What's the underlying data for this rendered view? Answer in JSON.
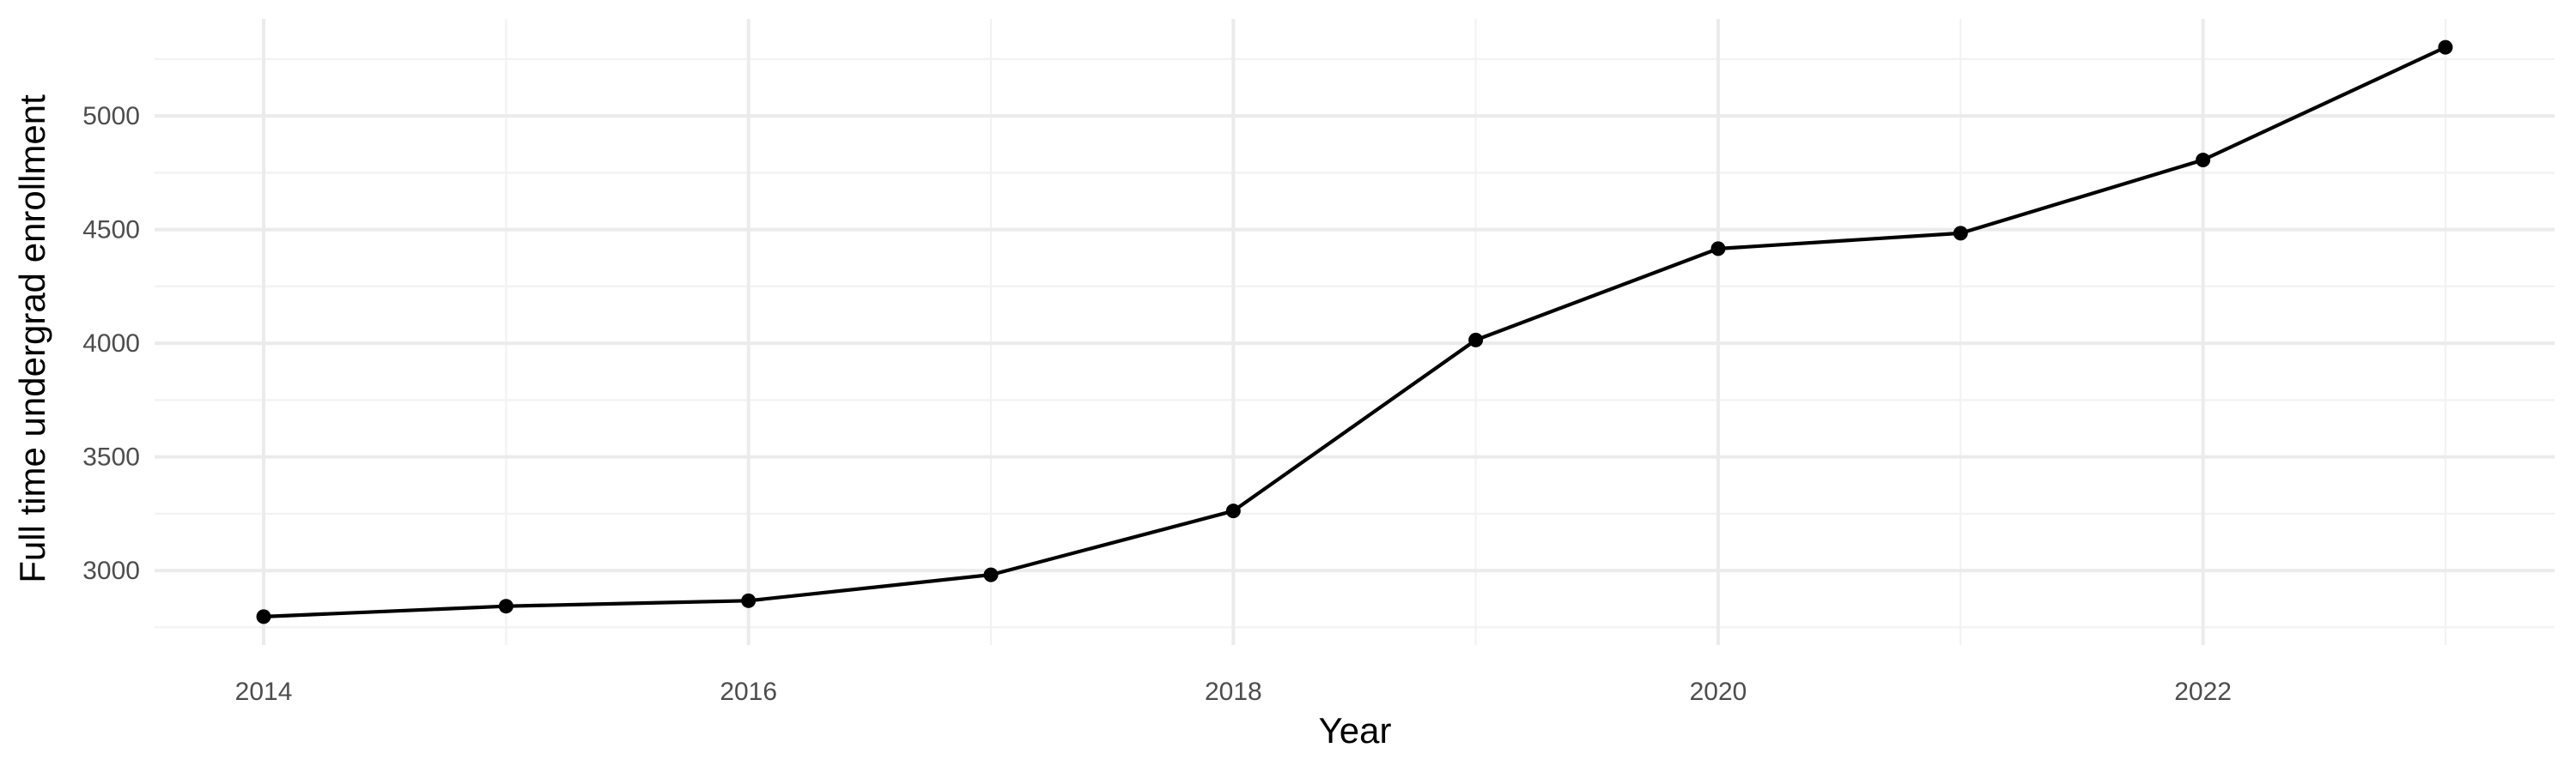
{
  "chart_data": {
    "type": "line",
    "title": "",
    "xlabel": "Year",
    "ylabel": "Full time undergrad enrollment",
    "x": [
      2014,
      2015,
      2016,
      2017,
      2018,
      2019,
      2020,
      2021,
      2022,
      2023
    ],
    "series": [
      {
        "values": [
          2797,
          2843,
          2867,
          2981,
          3262,
          4014,
          4416,
          4484,
          4806,
          5302
        ]
      }
    ],
    "x_ticks": [
      "2014",
      "2016",
      "2018",
      "2020",
      "2022"
    ],
    "y_ticks": [
      "3000",
      "3500",
      "4000",
      "4500",
      "5000"
    ],
    "xlim": [
      2013.55,
      2023.45
    ],
    "ylim": [
      2672,
      5427
    ],
    "grid": true,
    "legend": "none",
    "colors": {
      "line": "#000000",
      "point": "#000000",
      "grid": "#ebebeb",
      "background": "#ffffff"
    }
  }
}
